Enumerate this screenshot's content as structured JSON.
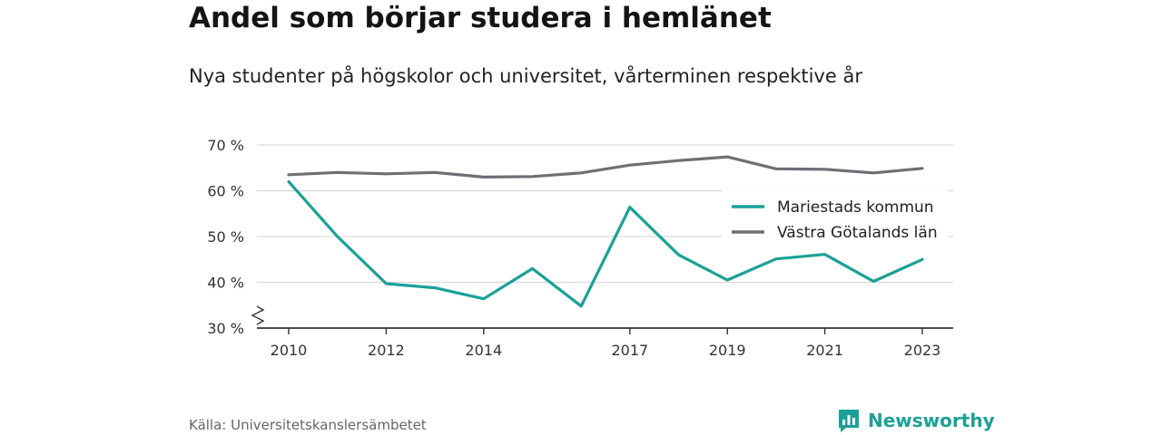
{
  "header": {
    "title": "Andel som börjar studera i hemlänet",
    "subtitle": "Nya studenter på högskolor och universitet, vårterminen respektive år"
  },
  "footer": {
    "source": "Källa: Universitetskanslersämbetet",
    "brand": "Newsworthy",
    "brand_icon": "bar-chart-speech-icon"
  },
  "colors": {
    "mariestad": "#1aa197",
    "vastra_gotaland": "#6e6e75",
    "grid": "#d9d9d9",
    "axis": "#333333",
    "brand": "#1aa197"
  },
  "chart_data": {
    "type": "line",
    "title": "Andel som börjar studera i hemlänet",
    "subtitle": "Nya studenter på högskolor och universitet, vårterminen respektive år",
    "xlabel": "",
    "ylabel": "",
    "x": [
      2010,
      2011,
      2012,
      2013,
      2014,
      2015,
      2016,
      2017,
      2018,
      2019,
      2020,
      2021,
      2022,
      2023
    ],
    "xticks": [
      "2010",
      "2012",
      "2014",
      "2017",
      "2019",
      "2021",
      "2023"
    ],
    "yticks": [
      "30 %",
      "40 %",
      "50 %",
      "60 %",
      "70 %"
    ],
    "ylim": [
      30,
      70
    ],
    "y_axis_break": true,
    "grid": true,
    "legend_position": "right",
    "series": [
      {
        "name": "Mariestads kommun",
        "values": [
          62,
          50,
          39.7,
          38.8,
          36.4,
          43,
          34.8,
          56.4,
          46,
          40.5,
          45.1,
          46.1,
          40.2,
          45
        ]
      },
      {
        "name": "Västra Götalands län",
        "values": [
          63.5,
          64,
          63.7,
          64,
          63,
          63.1,
          63.9,
          65.6,
          66.6,
          67.4,
          64.8,
          64.7,
          63.9,
          64.9
        ]
      }
    ]
  }
}
